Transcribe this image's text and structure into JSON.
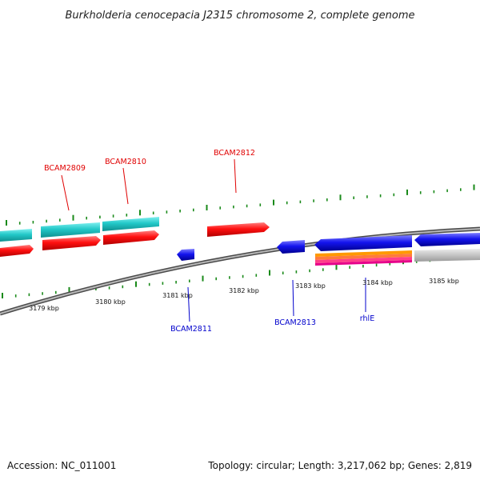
{
  "title": "Burkholderia cenocepacia J2315 chromosome 2, complete genome",
  "footer": {
    "accession": "Accession: NC_011001",
    "summary": "Topology: circular; Length: 3,217,062 bp; Genes: 2,819"
  },
  "colors": {
    "forward_label": "#e00000",
    "reverse_label": "#0000cc",
    "backbone": "#8a8a8a",
    "tick": "#1a8a1a",
    "cyan_gene": "#20c8c8",
    "red_gene": "#ff1010",
    "blue_gene": "#1414ee",
    "grey_gene": "#c0c0c0"
  },
  "ruler": {
    "labels": [
      "3179 kbp",
      "3180 kbp",
      "3181 kbp",
      "3182 kbp",
      "3183 kbp",
      "3184 kbp",
      "3185 kbp"
    ]
  },
  "gene_labels": {
    "forward": [
      "BCAM2809",
      "BCAM2810",
      "BCAM2812"
    ],
    "reverse": [
      "BCAM2811",
      "BCAM2813",
      "rhlE"
    ]
  }
}
